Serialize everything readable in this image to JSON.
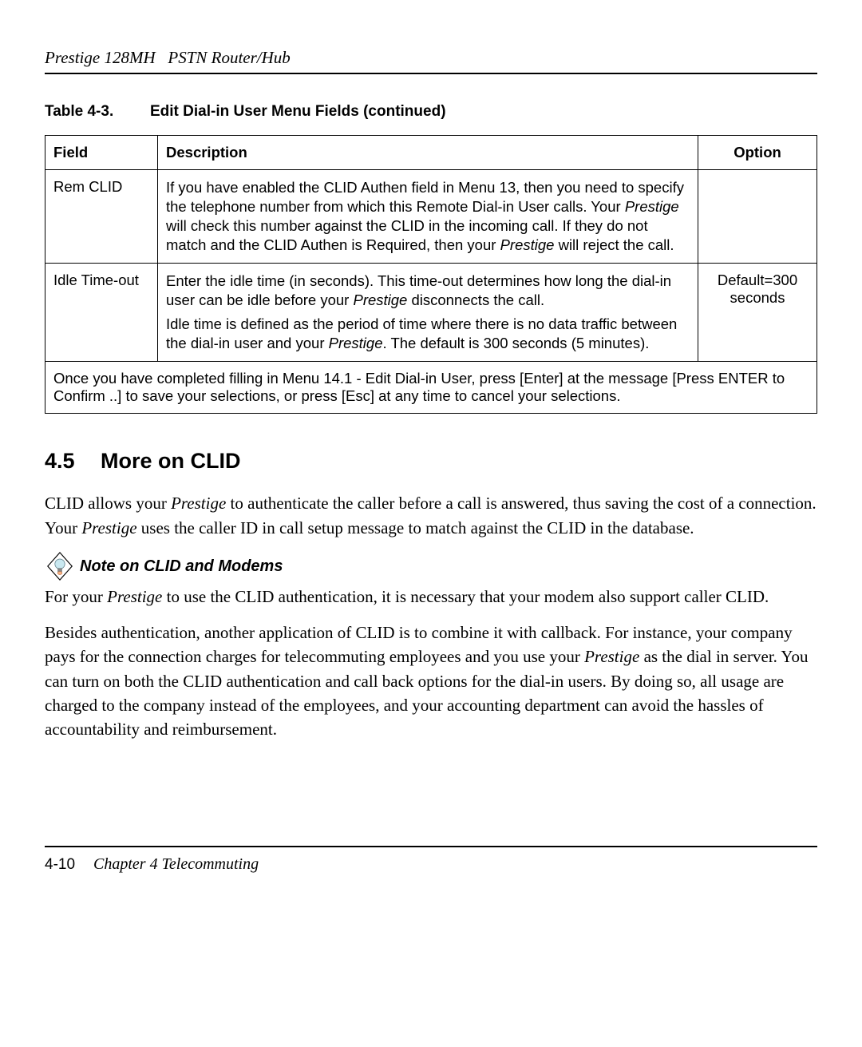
{
  "header": {
    "title_prefix": "Prestige 128MH",
    "title_suffix": "PSTN Router/Hub"
  },
  "table_caption": {
    "number": "Table 4-3.",
    "title": "Edit Dial-in User Menu Fields (continued)"
  },
  "table": {
    "headers": {
      "field": "Field",
      "description": "Description",
      "option": "Option"
    },
    "rows": [
      {
        "field": "Rem CLID",
        "desc_parts": [
          {
            "text": "If you have enabled the CLID Authen field in Menu 13, then you need to specify the telephone number from which this Remote Dial-in User calls. Your ",
            "italic": false
          },
          {
            "text": "Prestige",
            "italic": true
          },
          {
            "text": " will check this number against the CLID in the incoming call. If they do not match and the CLID Authen is Required, then your ",
            "italic": false
          },
          {
            "text": "Prestige",
            "italic": true
          },
          {
            "text": " will reject the call.",
            "italic": false
          }
        ],
        "option": ""
      },
      {
        "field": "Idle Time-out",
        "desc_parts_p1": [
          {
            "text": "Enter the idle time (in seconds). This time-out determines how long the dial-in user can be idle before your ",
            "italic": false
          },
          {
            "text": "Prestige",
            "italic": true
          },
          {
            "text": " disconnects the call.",
            "italic": false
          }
        ],
        "desc_parts_p2": [
          {
            "text": "Idle time is defined as the period of time where there is no data traffic between the dial-in user and your ",
            "italic": false
          },
          {
            "text": "Prestige",
            "italic": true
          },
          {
            "text": ". The default is 300 seconds (5 minutes).",
            "italic": false
          }
        ],
        "option": "Default=300 seconds"
      }
    ],
    "footer_row": "Once you have completed filling in Menu 14.1 - Edit Dial-in User, press [Enter] at the message [Press ENTER to Confirm ..] to save your selections, or press [Esc] at any time to cancel your selections."
  },
  "section": {
    "number": "4.5",
    "title": "More on CLID"
  },
  "paragraphs": {
    "p1_parts": [
      {
        "text": "CLID allows your ",
        "italic": false
      },
      {
        "text": "Prestige",
        "italic": true
      },
      {
        "text": " to authenticate the caller before a call is answered, thus saving the cost of a connection. Your ",
        "italic": false
      },
      {
        "text": "Prestige",
        "italic": true
      },
      {
        "text": " uses the caller ID in call setup message to match against the CLID in the database.",
        "italic": false
      }
    ],
    "note_title": "Note on CLID and Modems",
    "p2_parts": [
      {
        "text": "For your ",
        "italic": false
      },
      {
        "text": "Prestige",
        "italic": true
      },
      {
        "text": " to use the CLID authentication, it is necessary that your modem also support caller CLID.",
        "italic": false
      }
    ],
    "p3_parts": [
      {
        "text": "Besides authentication, another application of CLID is to combine it with callback. For instance, your company pays for the connection charges for telecommuting employees and you use your ",
        "italic": false
      },
      {
        "text": "Prestige",
        "italic": true
      },
      {
        "text": " as the dial in server. You can turn on both the CLID authentication and call back options for the dial-in users. By doing so, all usage are charged to the company instead of the employees, and your accounting department can avoid the hassles of accountability and reimbursement.",
        "italic": false
      }
    ]
  },
  "footer": {
    "page_number": "4-10",
    "chapter_label": "Chapter 4",
    "chapter_title": "Telecommuting"
  },
  "icon": {
    "stroke": "#000000",
    "bulb_fill": "#c9e8f0",
    "tip_fill": "#f4b183"
  }
}
